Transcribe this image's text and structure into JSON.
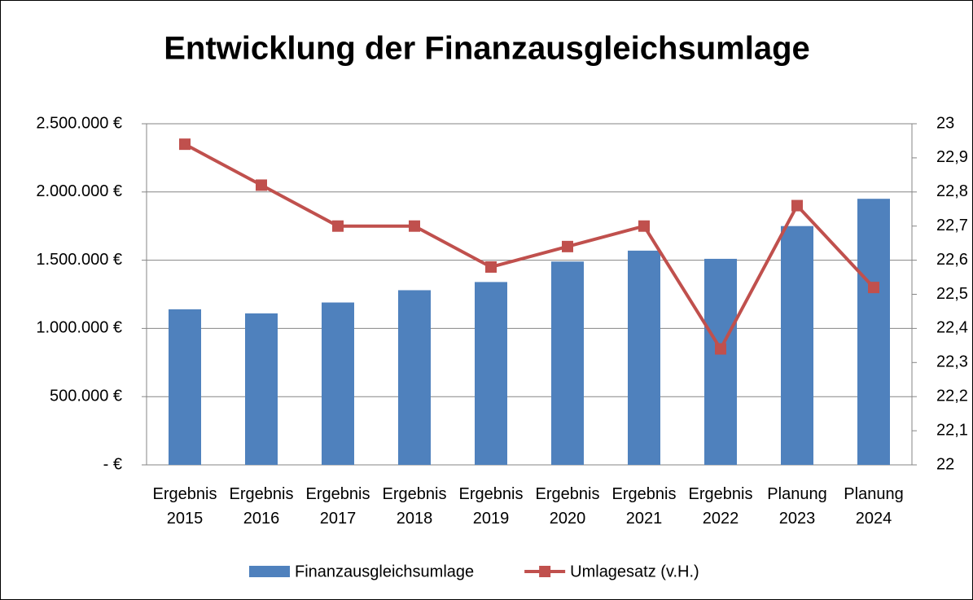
{
  "chart_data": {
    "type": "bar-line",
    "title": "Entwicklung der Finanzausgleichsumlage",
    "categories": [
      "Ergebnis 2015",
      "Ergebnis 2016",
      "Ergebnis 2017",
      "Ergebnis 2018",
      "Ergebnis 2019",
      "Ergebnis 2020",
      "Ergebnis 2021",
      "Ergebnis 2022",
      "Planung 2023",
      "Planung 2024"
    ],
    "series": [
      {
        "name": "Finanzausgleichsumlage",
        "type": "bar",
        "color": "#4f81bd",
        "values": [
          1140000,
          1110000,
          1190000,
          1280000,
          1340000,
          1490000,
          1570000,
          1510000,
          1750000,
          1950000
        ]
      },
      {
        "name": "Umlagesatz (v.H.)",
        "type": "line",
        "axis": "y2",
        "color": "#c0504d",
        "values": [
          22.94,
          22.82,
          22.7,
          22.7,
          22.58,
          22.64,
          22.7,
          22.34,
          22.76,
          22.52
        ]
      }
    ],
    "ylim": [
      0,
      2500000
    ],
    "yticks": [
      {
        "value": 0,
        "label": "-   €"
      },
      {
        "value": 500000,
        "label": "500.000 €"
      },
      {
        "value": 1000000,
        "label": "1.000.000 €"
      },
      {
        "value": 1500000,
        "label": "1.500.000 €"
      },
      {
        "value": 2000000,
        "label": "2.000.000 €"
      },
      {
        "value": 2500000,
        "label": "2.500.000 €"
      }
    ],
    "y2lim": [
      22,
      23
    ],
    "y2ticks": [
      22,
      {
        "value": 22.1,
        "label": "22,1"
      },
      {
        "value": 22.2,
        "label": "22,2"
      },
      {
        "value": 22.3,
        "label": "22,3"
      },
      {
        "value": 22.4,
        "label": "22,4"
      },
      {
        "value": 22.5,
        "label": "22,5"
      },
      {
        "value": 22.6,
        "label": "22,6"
      },
      {
        "value": 22.7,
        "label": "22,7"
      },
      {
        "value": 22.8,
        "label": "22,8"
      },
      {
        "value": 22.9,
        "label": "22,9"
      },
      23
    ],
    "grid": true,
    "legend": "bottom"
  }
}
